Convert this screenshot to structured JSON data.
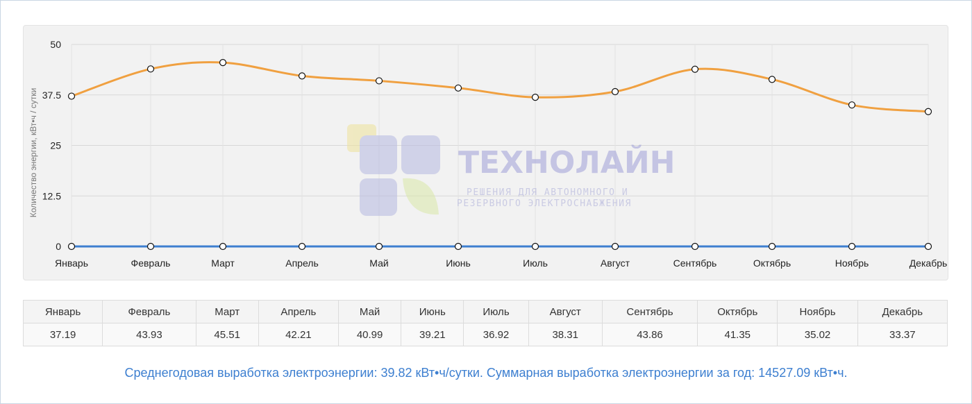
{
  "watermark": {
    "brand": "ТЕХНОЛАЙН",
    "tagline_line1": "РЕШЕНИЯ ДЛЯ АВТОНОМНОГО И",
    "tagline_line2": "РЕЗЕРВНОГО ЭЛЕКТРОСНАБЖЕНИЯ"
  },
  "chart_data": {
    "type": "line",
    "categories": [
      "Январь",
      "Февраль",
      "Март",
      "Апрель",
      "Май",
      "Июнь",
      "Июль",
      "Август",
      "Сентябрь",
      "Октябрь",
      "Ноябрь",
      "Декабрь"
    ],
    "series": [
      {
        "values": [
          37.19,
          43.93,
          45.51,
          42.21,
          40.99,
          39.21,
          36.92,
          38.31,
          43.86,
          41.35,
          35.02,
          33.37
        ],
        "color": "#f0a040"
      },
      {
        "values": [
          0,
          0,
          0,
          0,
          0,
          0,
          0,
          0,
          0,
          0,
          0,
          0
        ],
        "color": "#3d7fd0"
      }
    ],
    "ylabel": "Количество энергии, кВт•ч / сутки",
    "yticks": [
      "0",
      "12.5",
      "25",
      "37.5",
      "50"
    ],
    "ylim": [
      0,
      50
    ],
    "grid": true
  },
  "table": {
    "months": [
      "Январь",
      "Февраль",
      "Март",
      "Апрель",
      "Май",
      "Июнь",
      "Июль",
      "Август",
      "Сентябрь",
      "Октябрь",
      "Ноябрь",
      "Декабрь"
    ],
    "values": [
      "37.19",
      "43.93",
      "45.51",
      "42.21",
      "40.99",
      "39.21",
      "36.92",
      "38.31",
      "43.86",
      "41.35",
      "35.02",
      "33.37"
    ]
  },
  "summary": "Среднегодовая выработка электроэнергии: 39.82 кВт•ч/сутки. Суммарная выработка электроэнергии за год: 14527.09 кВт•ч."
}
